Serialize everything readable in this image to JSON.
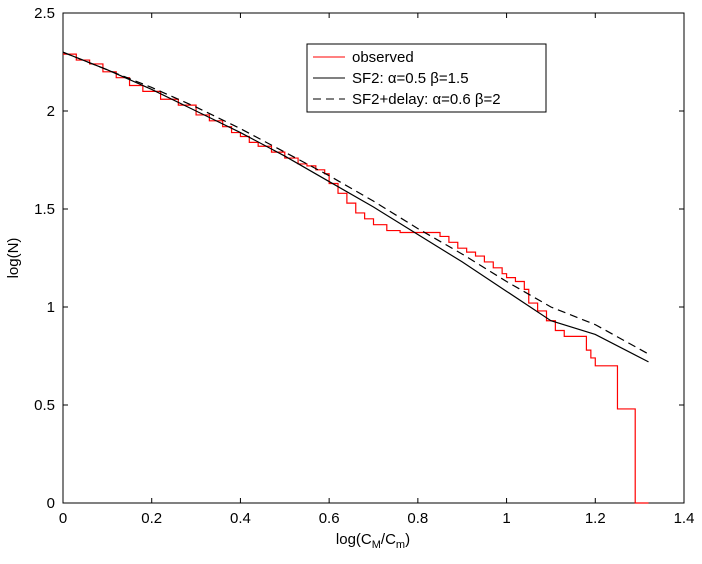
{
  "chart_data": {
    "type": "line",
    "xlabel": "log(C",
    "xlabel_sub1": "M",
    "xlabel_mid": "/C",
    "xlabel_sub2": "m",
    "xlabel_end": ")",
    "ylabel": "log(N)",
    "xlim": [
      0,
      1.4
    ],
    "ylim": [
      0,
      2.5
    ],
    "xticks": [
      0,
      0.2,
      0.4,
      0.6,
      0.8,
      1,
      1.2,
      1.4
    ],
    "xtick_labels": [
      "0",
      "0.2",
      "0.4",
      "0.6",
      "0.8",
      "1",
      "1.2",
      "1.4"
    ],
    "yticks": [
      0,
      0.5,
      1,
      1.5,
      2,
      2.5
    ],
    "ytick_labels": [
      "0",
      "0.5",
      "1",
      "1.5",
      "2",
      "2.5"
    ],
    "grid": false,
    "legend_position": "top-right",
    "series": [
      {
        "name": "observed",
        "color": "#ff0000",
        "style": "solid",
        "x": [
          0.0,
          0.03,
          0.06,
          0.09,
          0.12,
          0.15,
          0.18,
          0.22,
          0.26,
          0.3,
          0.33,
          0.36,
          0.38,
          0.4,
          0.42,
          0.44,
          0.47,
          0.5,
          0.53,
          0.55,
          0.57,
          0.59,
          0.6,
          0.62,
          0.64,
          0.66,
          0.68,
          0.7,
          0.73,
          0.76,
          0.8,
          0.83,
          0.85,
          0.87,
          0.89,
          0.91,
          0.93,
          0.95,
          0.97,
          0.99,
          1.0,
          1.02,
          1.04,
          1.05,
          1.07,
          1.09,
          1.11,
          1.13,
          1.15,
          1.17,
          1.18,
          1.19,
          1.2,
          1.21,
          1.25,
          1.29,
          1.29,
          1.32
        ],
        "y": [
          2.29,
          2.26,
          2.24,
          2.2,
          2.17,
          2.13,
          2.1,
          2.06,
          2.03,
          1.98,
          1.95,
          1.92,
          1.89,
          1.87,
          1.84,
          1.82,
          1.79,
          1.76,
          1.73,
          1.72,
          1.7,
          1.68,
          1.63,
          1.58,
          1.53,
          1.48,
          1.45,
          1.42,
          1.39,
          1.38,
          1.38,
          1.38,
          1.36,
          1.33,
          1.3,
          1.28,
          1.26,
          1.23,
          1.2,
          1.17,
          1.15,
          1.13,
          1.09,
          1.02,
          0.98,
          0.93,
          0.88,
          0.85,
          0.85,
          0.85,
          0.78,
          0.74,
          0.7,
          0.7,
          0.48,
          0.48,
          0.0,
          0.0
        ]
      },
      {
        "name": "SF2: α=0.5 β=1.5",
        "color": "#000000",
        "style": "solid",
        "x": [
          0.0,
          0.1,
          0.2,
          0.3,
          0.4,
          0.5,
          0.6,
          0.7,
          0.8,
          0.9,
          1.0,
          1.1,
          1.2,
          1.32
        ],
        "y": [
          2.3,
          2.21,
          2.11,
          2.0,
          1.89,
          1.77,
          1.64,
          1.51,
          1.37,
          1.23,
          1.08,
          0.93,
          0.86,
          0.72
        ]
      },
      {
        "name": "SF2+delay: α=0.6 β=2",
        "color": "#000000",
        "style": "dashed",
        "x": [
          0.0,
          0.1,
          0.2,
          0.3,
          0.4,
          0.5,
          0.6,
          0.7,
          0.8,
          0.9,
          1.0,
          1.1,
          1.2,
          1.32
        ],
        "y": [
          2.3,
          2.21,
          2.12,
          2.02,
          1.91,
          1.79,
          1.67,
          1.54,
          1.4,
          1.27,
          1.13,
          1.0,
          0.91,
          0.76
        ]
      }
    ]
  }
}
